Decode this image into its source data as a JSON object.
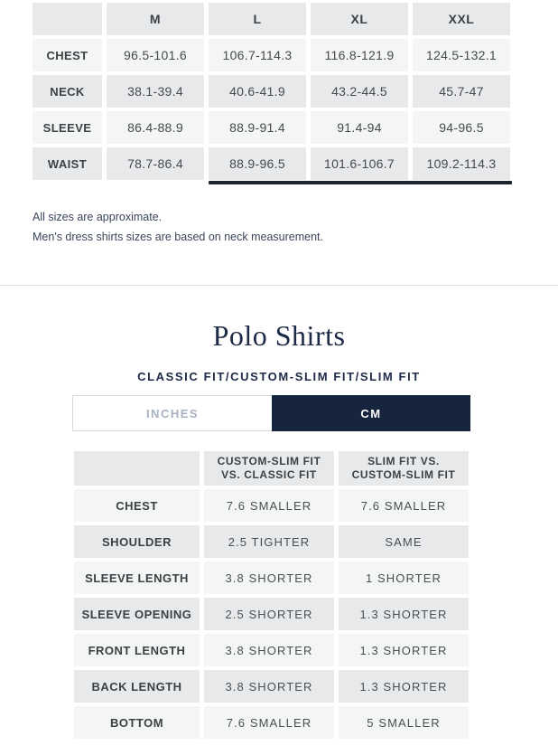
{
  "colors": {
    "navy": "#16243e",
    "row_dark": "#e8e9ea",
    "row_light": "#f4f5f5",
    "scrollbar": "#1c2430",
    "divider": "#e4e4e4",
    "inactive_tab_text": "#a7b1c2",
    "heading_navy": "#1d2a46"
  },
  "size_table": {
    "columns": [
      "M",
      "L",
      "XL",
      "XXL"
    ],
    "rows": [
      {
        "label": "CHEST",
        "values": [
          "96.5-101.6",
          "106.7-114.3",
          "116.8-121.9",
          "124.5-132.1"
        ]
      },
      {
        "label": "NECK",
        "values": [
          "38.1-39.4",
          "40.6-41.9",
          "43.2-44.5",
          "45.7-47"
        ]
      },
      {
        "label": "SLEEVE",
        "values": [
          "86.4-88.9",
          "88.9-91.4",
          "91.4-94",
          "94-96.5"
        ]
      },
      {
        "label": "WAIST",
        "values": [
          "78.7-86.4",
          "88.9-96.5",
          "101.6-106.7",
          "109.2-114.3"
        ]
      }
    ]
  },
  "notes": [
    "All sizes are approximate.",
    "Men's dress shirts sizes are based on neck measurement."
  ],
  "section": {
    "title": "Polo Shirts",
    "subtitle": "CLASSIC FIT/CUSTOM-SLIM FIT/SLIM FIT"
  },
  "unit_tabs": [
    {
      "label": "INCHES",
      "active": false
    },
    {
      "label": "CM",
      "active": true
    }
  ],
  "fit_table": {
    "columns": [
      "CUSTOM-SLIM FIT VS. CLASSIC FIT",
      "SLIM FIT VS. CUSTOM-SLIM FIT"
    ],
    "rows": [
      {
        "label": "CHEST",
        "values": [
          "7.6 SMALLER",
          "7.6 SMALLER"
        ]
      },
      {
        "label": "SHOULDER",
        "values": [
          "2.5 TIGHTER",
          "SAME"
        ]
      },
      {
        "label": "SLEEVE LENGTH",
        "values": [
          "3.8 SHORTER",
          "1 SHORTER"
        ]
      },
      {
        "label": "SLEEVE OPENING",
        "values": [
          "2.5 SHORTER",
          "1.3 SHORTER"
        ]
      },
      {
        "label": "FRONT LENGTH",
        "values": [
          "3.8 SHORTER",
          "1.3 SHORTER"
        ]
      },
      {
        "label": "BACK LENGTH",
        "values": [
          "3.8 SHORTER",
          "1.3 SHORTER"
        ]
      },
      {
        "label": "BOTTOM",
        "values": [
          "7.6 SMALLER",
          "5 SMALLER"
        ]
      }
    ]
  }
}
